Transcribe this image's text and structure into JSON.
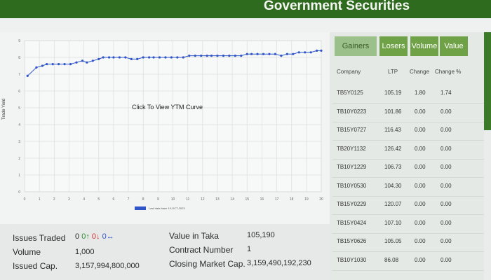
{
  "header": {
    "title": "Government Securities"
  },
  "chart": {
    "click_text": "Click To View YTM Curve",
    "ylabel": "Trade Yield",
    "legend": "Last data base 19-OCT-2023",
    "series_color": "#2f55c9"
  },
  "chart_data": {
    "type": "line",
    "x_ticks": [
      "0",
      "1",
      "2",
      "3",
      "4",
      "5",
      "6",
      "7",
      "8",
      "9",
      "10",
      "11",
      "12",
      "13",
      "14",
      "15",
      "16",
      "17",
      "18",
      "19",
      "20"
    ],
    "y_ticks": [
      "0",
      "1",
      "2",
      "3",
      "4",
      "5",
      "6",
      "7",
      "8",
      "9"
    ],
    "ylim": [
      0,
      9
    ],
    "xlim": [
      0,
      20
    ],
    "ylabel": "Trade Yield",
    "grid": true,
    "legend_position": "bottom",
    "series": [
      {
        "name": "Last data base 19-OCT-2023",
        "x": [
          0.2,
          0.8,
          1.2,
          1.5,
          1.9,
          2.3,
          2.7,
          3.1,
          3.5,
          3.9,
          4.2,
          4.6,
          5.0,
          5.3,
          5.7,
          6.0,
          6.4,
          6.8,
          7.2,
          7.6,
          8.0,
          8.4,
          8.7,
          9.1,
          9.5,
          9.9,
          10.3,
          10.7,
          11.1,
          11.5,
          11.9,
          12.3,
          12.6,
          13.0,
          13.4,
          13.8,
          14.2,
          14.6,
          15.0,
          15.3,
          15.7,
          16.1,
          16.5,
          16.9,
          17.3,
          17.7,
          18.1,
          18.5,
          18.9,
          19.3,
          19.7,
          20.0
        ],
        "y": [
          6.9,
          7.4,
          7.5,
          7.6,
          7.6,
          7.6,
          7.6,
          7.6,
          7.7,
          7.8,
          7.7,
          7.8,
          7.9,
          8.0,
          8.0,
          8.0,
          8.0,
          8.0,
          7.9,
          7.9,
          8.0,
          8.0,
          8.0,
          8.0,
          8.0,
          8.0,
          8.0,
          8.0,
          8.1,
          8.1,
          8.1,
          8.1,
          8.1,
          8.1,
          8.1,
          8.1,
          8.1,
          8.1,
          8.2,
          8.2,
          8.2,
          8.2,
          8.2,
          8.2,
          8.1,
          8.2,
          8.2,
          8.3,
          8.3,
          8.3,
          8.4,
          8.4
        ]
      }
    ]
  },
  "stats": {
    "issues_traded_label": "Issues Traded",
    "issues_up": "0",
    "issues_down": "0",
    "issues_neutral": "0",
    "issues_total": "0",
    "volume_label": "Volume",
    "volume_value": "1,000",
    "issued_cap_label": "Issued Cap.",
    "issued_cap_value": "3,157,994,800,000",
    "value_taka_label": "Value in Taka",
    "value_taka_value": "105,190",
    "contract_number_label": "Contract Number",
    "contract_number_value": "1",
    "closing_cap_label": "Closing Market Cap.",
    "closing_cap_value": "3,159,490,192,230"
  },
  "table": {
    "tabs": [
      "Gainers",
      "Losers",
      "Volume",
      "Value"
    ],
    "columns": [
      "Company",
      "LTP",
      "Change",
      "Change %"
    ],
    "rows": [
      {
        "company": "TB5Y0125",
        "ltp": "105.19",
        "change": "1.80",
        "change_pct": "1.74"
      },
      {
        "company": "TB10Y0223",
        "ltp": "101.86",
        "change": "0.00",
        "change_pct": "0.00"
      },
      {
        "company": "TB15Y0727",
        "ltp": "116.43",
        "change": "0.00",
        "change_pct": "0.00"
      },
      {
        "company": "TB20Y1132",
        "ltp": "126.42",
        "change": "0.00",
        "change_pct": "0.00"
      },
      {
        "company": "TB10Y1229",
        "ltp": "106.73",
        "change": "0.00",
        "change_pct": "0.00"
      },
      {
        "company": "TB10Y0530",
        "ltp": "104.30",
        "change": "0.00",
        "change_pct": "0.00"
      },
      {
        "company": "TB15Y0229",
        "ltp": "120.07",
        "change": "0.00",
        "change_pct": "0.00"
      },
      {
        "company": "TB15Y0424",
        "ltp": "107.10",
        "change": "0.00",
        "change_pct": "0.00"
      },
      {
        "company": "TB15Y0626",
        "ltp": "105.05",
        "change": "0.00",
        "change_pct": "0.00"
      },
      {
        "company": "TB10Y1030",
        "ltp": "86.08",
        "change": "0.00",
        "change_pct": "0.00"
      }
    ]
  }
}
